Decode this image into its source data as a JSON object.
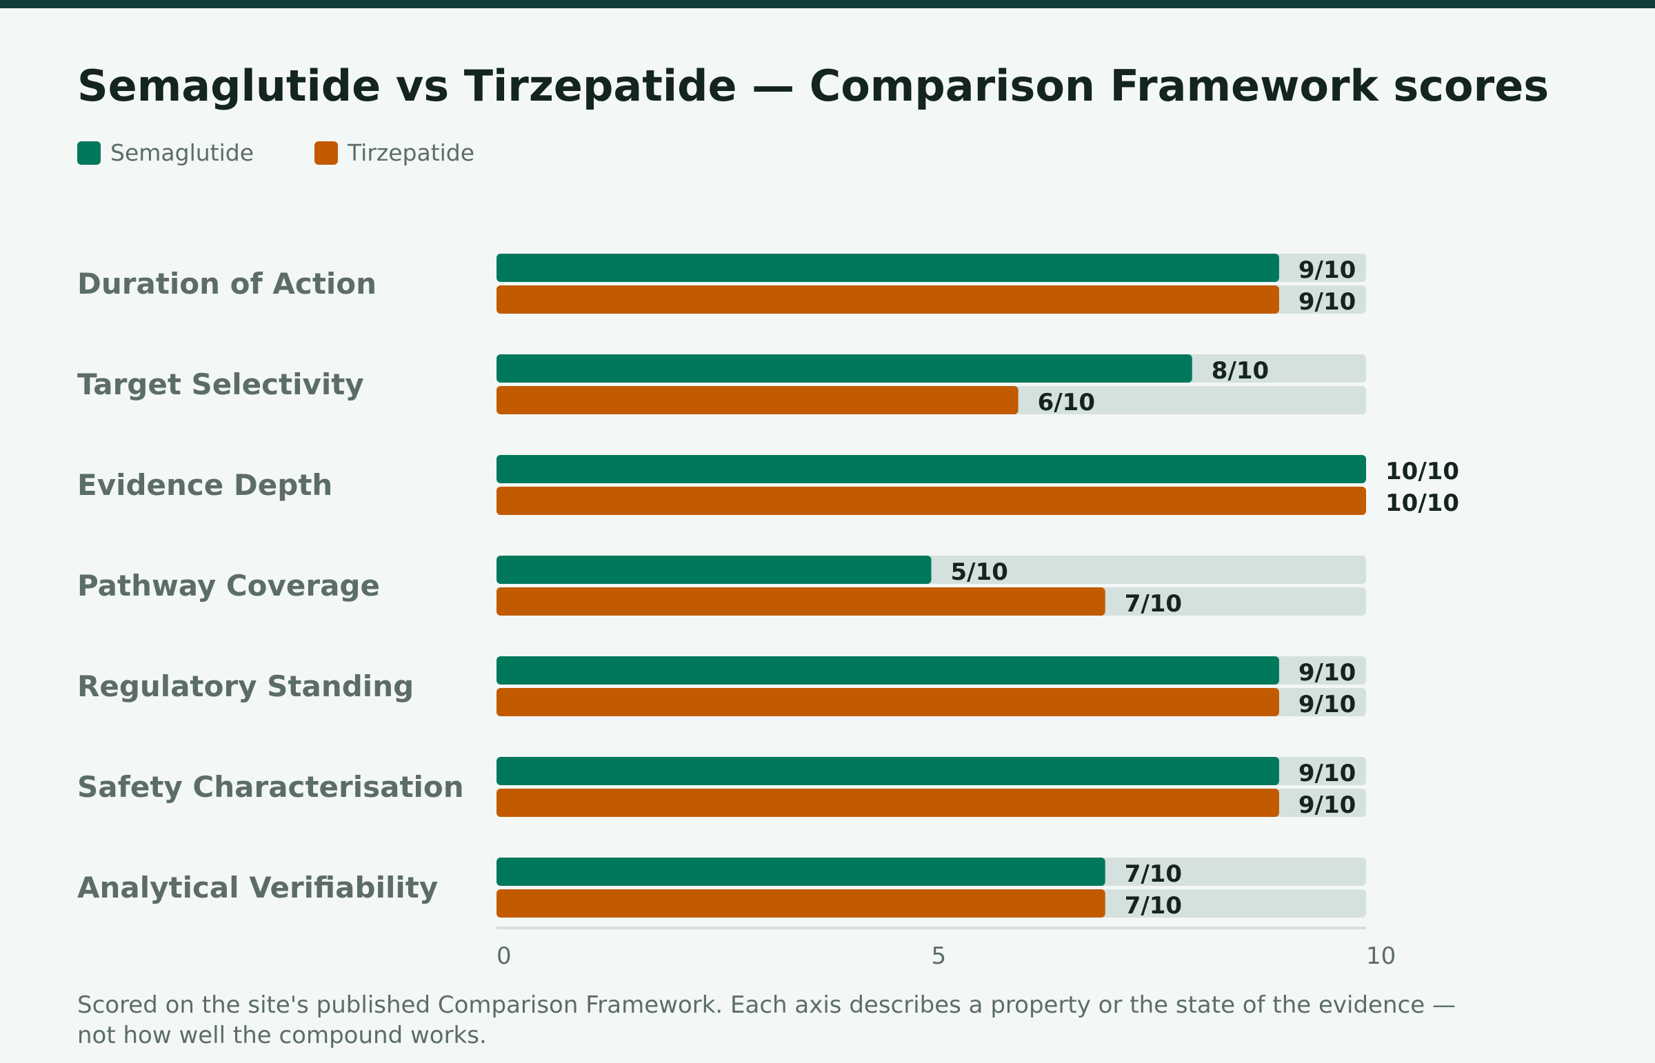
{
  "title": "Semaglutide vs Tirzepatide — Comparison Framework scores",
  "footnote": "Scored on the site's published Comparison Framework. Each axis describes a property or the state of the evidence — not how well the compound works.",
  "colors": {
    "semaglutide": "#00785c",
    "tirzepatide": "#c25a00",
    "track": "#d4e1de",
    "axis": "#d4e1de"
  },
  "chart_data": {
    "type": "bar",
    "orientation": "horizontal",
    "title": "Semaglutide vs Tirzepatide — Comparison Framework scores",
    "xlim": [
      0,
      10
    ],
    "value_suffix": "/10",
    "categories": [
      "Duration of Action",
      "Target Selectivity",
      "Evidence Depth",
      "Pathway Coverage",
      "Regulatory Standing",
      "Safety Characterisation",
      "Analytical Verifiability"
    ],
    "series": [
      {
        "name": "Semaglutide",
        "color": "#00785c",
        "values": [
          9,
          8,
          10,
          5,
          9,
          9,
          7
        ]
      },
      {
        "name": "Tirzepatide",
        "color": "#c25a00",
        "values": [
          9,
          6,
          10,
          7,
          9,
          9,
          7
        ]
      }
    ],
    "ticks": [
      "0",
      "5",
      "10"
    ],
    "tick_values": [
      0,
      5,
      10
    ],
    "legend_position": "top-left",
    "grid": false
  }
}
